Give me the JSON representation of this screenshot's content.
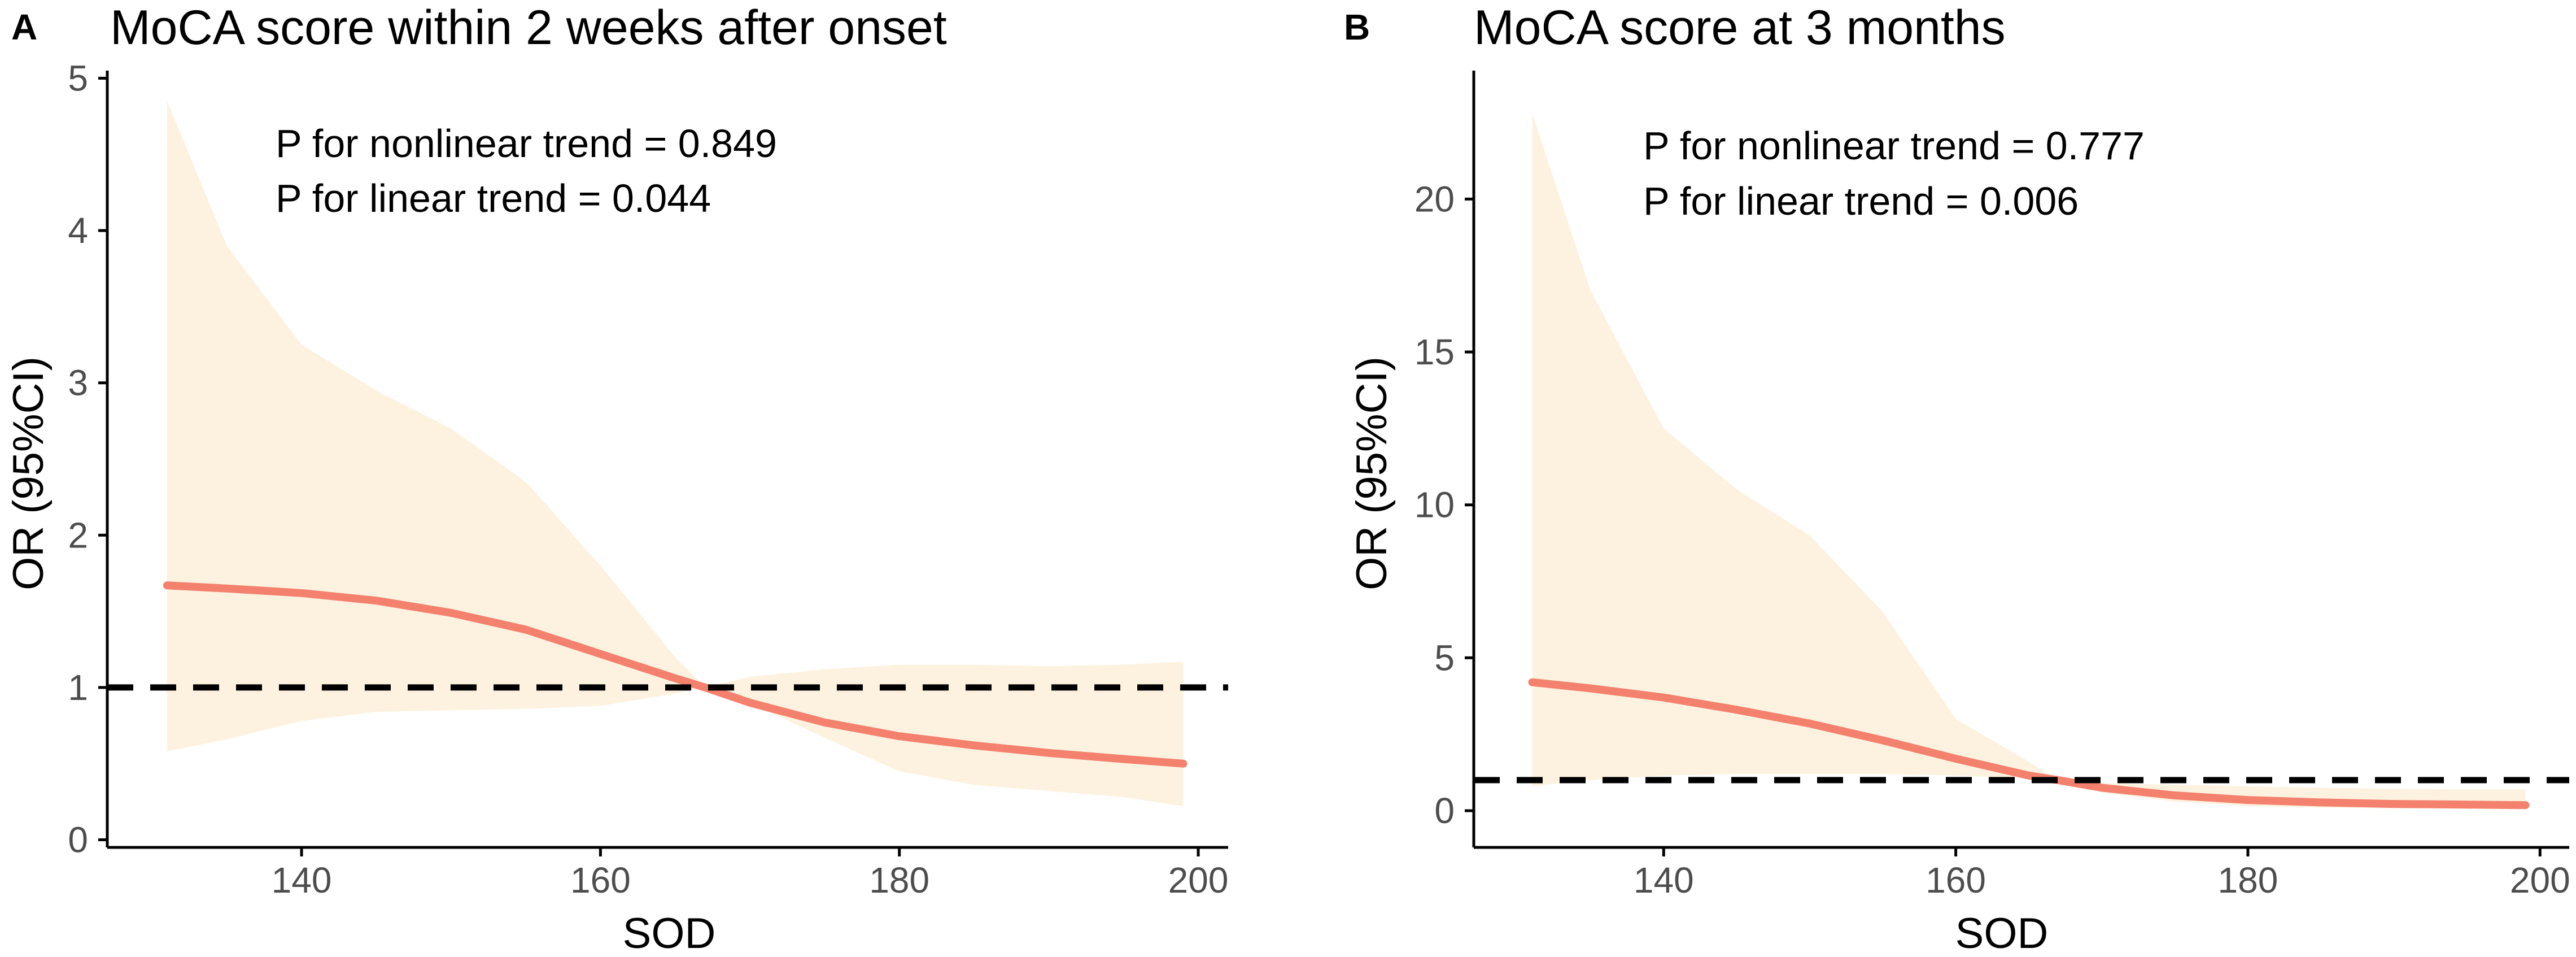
{
  "chart_data": [
    {
      "type": "line",
      "panel_letter": "A",
      "title": "MoCA score within 2 weeks after onset",
      "xlabel": "SOD",
      "ylabel": "OR (95%CI)",
      "xlim": [
        127,
        202
      ],
      "ylim": [
        -0.05,
        5.05
      ],
      "x_ticks": [
        140,
        160,
        180,
        200
      ],
      "y_ticks": [
        0,
        1,
        2,
        3,
        4,
        5
      ],
      "reference_line": {
        "y": 1,
        "style": "dashed"
      },
      "annotations": [
        "P for nonlinear trend = 0.849",
        "P for linear trend  = 0.044"
      ],
      "series": [
        {
          "name": "OR",
          "x": [
            131,
            135,
            140,
            145,
            150,
            155,
            160,
            165,
            167,
            170,
            175,
            180,
            185,
            190,
            195,
            199
          ],
          "y": [
            1.67,
            1.65,
            1.62,
            1.57,
            1.49,
            1.38,
            1.22,
            1.06,
            1.0,
            0.9,
            0.77,
            0.68,
            0.62,
            0.57,
            0.53,
            0.5
          ]
        },
        {
          "name": "95% CI lower",
          "x": [
            131,
            135,
            140,
            145,
            150,
            155,
            160,
            165,
            167,
            170,
            175,
            180,
            185,
            190,
            195,
            199
          ],
          "y": [
            0.58,
            0.66,
            0.78,
            0.84,
            0.85,
            0.86,
            0.88,
            0.96,
            1.0,
            0.9,
            0.67,
            0.45,
            0.36,
            0.32,
            0.28,
            0.22
          ]
        },
        {
          "name": "95% CI upper",
          "x": [
            131,
            135,
            140,
            145,
            150,
            155,
            160,
            165,
            167,
            170,
            175,
            180,
            185,
            190,
            195,
            199
          ],
          "y": [
            4.85,
            3.9,
            3.25,
            2.95,
            2.7,
            2.35,
            1.8,
            1.2,
            1.0,
            1.07,
            1.12,
            1.15,
            1.15,
            1.14,
            1.15,
            1.17
          ]
        }
      ]
    },
    {
      "type": "line",
      "panel_letter": "B",
      "title": "MoCA score at 3 months",
      "xlabel": "SOD",
      "ylabel": "OR (95%CI)",
      "xlim": [
        127,
        202
      ],
      "ylim": [
        -1.2,
        24.2
      ],
      "x_ticks": [
        140,
        160,
        180,
        200
      ],
      "y_ticks": [
        0,
        5,
        10,
        15,
        20
      ],
      "reference_line": {
        "y": 1,
        "style": "dashed"
      },
      "annotations": [
        "P for nonlinear trend = 0.777",
        "P for linear trend  = 0.006"
      ],
      "series": [
        {
          "name": "OR",
          "x": [
            131,
            135,
            140,
            145,
            150,
            155,
            160,
            165,
            167,
            170,
            175,
            180,
            185,
            190,
            195,
            199
          ],
          "y": [
            4.2,
            4.0,
            3.7,
            3.3,
            2.85,
            2.3,
            1.7,
            1.15,
            1.0,
            0.75,
            0.5,
            0.35,
            0.27,
            0.22,
            0.2,
            0.18
          ]
        },
        {
          "name": "95% CI lower",
          "x": [
            131,
            135,
            140,
            145,
            150,
            155,
            160,
            165,
            167,
            170,
            175,
            180,
            185,
            190,
            195,
            199
          ],
          "y": [
            0.8,
            1.0,
            1.15,
            1.2,
            1.2,
            1.2,
            1.15,
            1.05,
            1.0,
            0.6,
            0.3,
            0.15,
            0.1,
            0.08,
            0.07,
            0.06
          ]
        },
        {
          "name": "95% CI upper",
          "x": [
            131,
            135,
            140,
            145,
            150,
            155,
            160,
            165,
            167,
            170,
            175,
            180,
            185,
            190,
            195,
            199
          ],
          "y": [
            22.8,
            17.0,
            12.5,
            10.5,
            9.0,
            6.5,
            3.0,
            1.6,
            1.0,
            0.9,
            0.85,
            0.8,
            0.75,
            0.72,
            0.7,
            0.7
          ]
        }
      ]
    }
  ],
  "colors": {
    "curve": "#f4806e",
    "ci_band": "#fdf2e0",
    "reference_line": "#000000",
    "axis": "#000000",
    "tick_label": "#4d4d4d"
  }
}
